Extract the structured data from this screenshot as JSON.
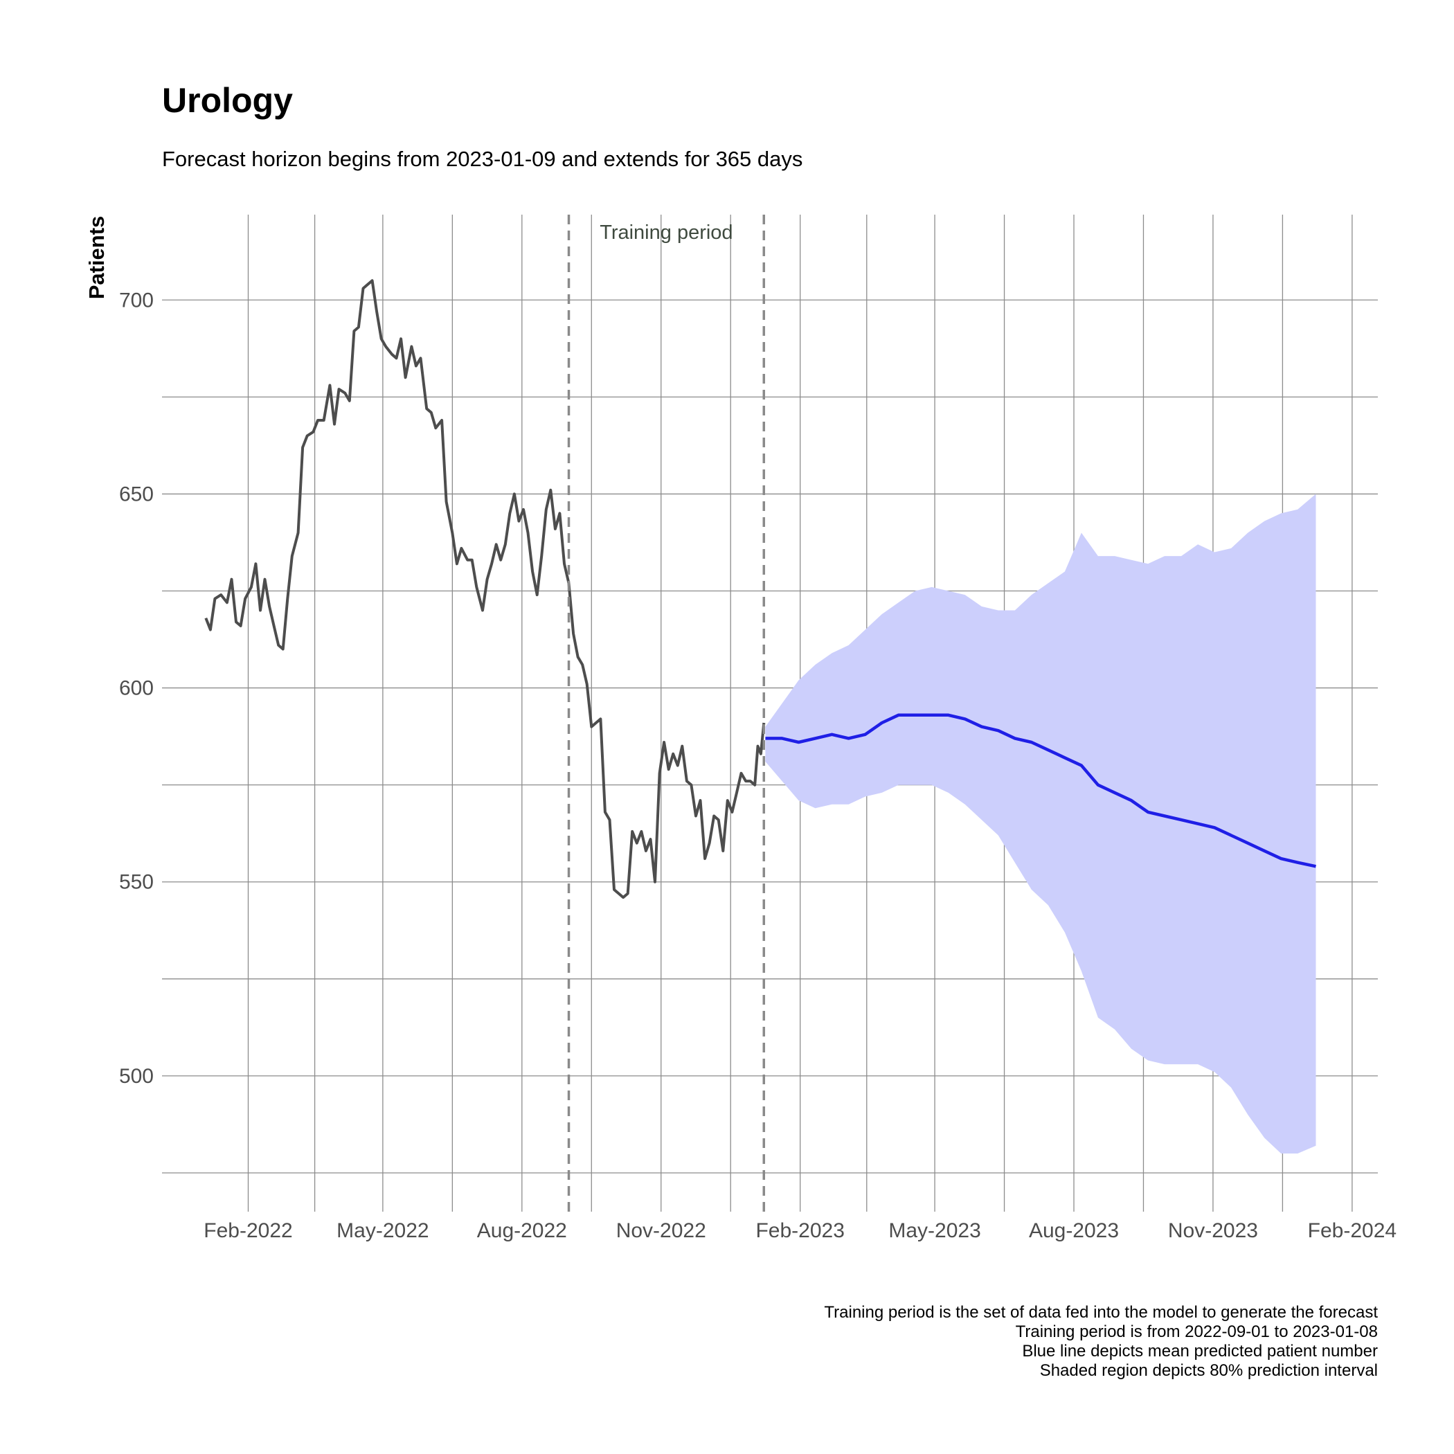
{
  "chart_data": {
    "type": "line",
    "title": "Urology",
    "subtitle": "Forecast horizon begins from 2023-01-09 and extends for 365 days",
    "ylabel": "Patients",
    "xlabel": "",
    "ylim": [
      465,
      722
    ],
    "xlim": [
      "2021-12-06",
      "2024-02-18"
    ],
    "y_ticks": [
      500,
      550,
      600,
      650,
      700
    ],
    "x_ticks": [
      {
        "date": "2022-02-01",
        "label": "Feb-2022"
      },
      {
        "date": "2022-05-01",
        "label": "May-2022"
      },
      {
        "date": "2022-08-01",
        "label": "Aug-2022"
      },
      {
        "date": "2022-11-01",
        "label": "Nov-2022"
      },
      {
        "date": "2023-02-01",
        "label": "Feb-2023"
      },
      {
        "date": "2023-05-01",
        "label": "May-2023"
      },
      {
        "date": "2023-08-01",
        "label": "Aug-2023"
      },
      {
        "date": "2023-11-01",
        "label": "Nov-2023"
      },
      {
        "date": "2024-02-01",
        "label": "Feb-2024"
      }
    ],
    "grid": true,
    "training_period": {
      "label": "Training period",
      "start": "2022-09-01",
      "end": "2023-01-08"
    },
    "series": [
      {
        "role": "history",
        "color": "#4d4d4d",
        "points": [
          [
            "2022-01-04",
            618
          ],
          [
            "2022-01-07",
            615
          ],
          [
            "2022-01-10",
            623
          ],
          [
            "2022-01-14",
            624
          ],
          [
            "2022-01-18",
            622
          ],
          [
            "2022-01-21",
            628
          ],
          [
            "2022-01-24",
            617
          ],
          [
            "2022-01-27",
            616
          ],
          [
            "2022-01-30",
            623
          ],
          [
            "2022-02-03",
            626
          ],
          [
            "2022-02-06",
            632
          ],
          [
            "2022-02-09",
            620
          ],
          [
            "2022-02-12",
            628
          ],
          [
            "2022-02-15",
            621
          ],
          [
            "2022-02-18",
            616
          ],
          [
            "2022-02-21",
            611
          ],
          [
            "2022-02-24",
            610
          ],
          [
            "2022-02-27",
            623
          ],
          [
            "2022-03-02",
            634
          ],
          [
            "2022-03-06",
            640
          ],
          [
            "2022-03-09",
            662
          ],
          [
            "2022-03-12",
            665
          ],
          [
            "2022-03-16",
            666
          ],
          [
            "2022-03-19",
            669
          ],
          [
            "2022-03-23",
            669
          ],
          [
            "2022-03-27",
            678
          ],
          [
            "2022-03-30",
            668
          ],
          [
            "2022-04-02",
            677
          ],
          [
            "2022-04-06",
            676
          ],
          [
            "2022-04-09",
            674
          ],
          [
            "2022-04-12",
            692
          ],
          [
            "2022-04-15",
            693
          ],
          [
            "2022-04-18",
            703
          ],
          [
            "2022-04-21",
            704
          ],
          [
            "2022-04-24",
            705
          ],
          [
            "2022-04-27",
            697
          ],
          [
            "2022-04-30",
            690
          ],
          [
            "2022-05-03",
            688
          ],
          [
            "2022-05-07",
            686
          ],
          [
            "2022-05-10",
            685
          ],
          [
            "2022-05-13",
            690
          ],
          [
            "2022-05-16",
            680
          ],
          [
            "2022-05-20",
            688
          ],
          [
            "2022-05-23",
            683
          ],
          [
            "2022-05-26",
            685
          ],
          [
            "2022-05-30",
            672
          ],
          [
            "2022-06-02",
            671
          ],
          [
            "2022-06-05",
            667
          ],
          [
            "2022-06-09",
            669
          ],
          [
            "2022-06-12",
            648
          ],
          [
            "2022-06-16",
            640
          ],
          [
            "2022-06-19",
            632
          ],
          [
            "2022-06-22",
            636
          ],
          [
            "2022-06-26",
            633
          ],
          [
            "2022-06-29",
            633
          ],
          [
            "2022-07-02",
            626
          ],
          [
            "2022-07-06",
            620
          ],
          [
            "2022-07-09",
            628
          ],
          [
            "2022-07-12",
            632
          ],
          [
            "2022-07-15",
            637
          ],
          [
            "2022-07-18",
            633
          ],
          [
            "2022-07-21",
            637
          ],
          [
            "2022-07-24",
            645
          ],
          [
            "2022-07-27",
            650
          ],
          [
            "2022-07-30",
            643
          ],
          [
            "2022-08-02",
            646
          ],
          [
            "2022-08-05",
            640
          ],
          [
            "2022-08-08",
            630
          ],
          [
            "2022-08-11",
            624
          ],
          [
            "2022-08-14",
            634
          ],
          [
            "2022-08-17",
            646
          ],
          [
            "2022-08-20",
            651
          ],
          [
            "2022-08-23",
            641
          ],
          [
            "2022-08-26",
            645
          ],
          [
            "2022-08-29",
            632
          ],
          [
            "2022-09-01",
            627
          ],
          [
            "2022-09-04",
            614
          ],
          [
            "2022-09-07",
            608
          ],
          [
            "2022-09-10",
            606
          ],
          [
            "2022-09-13",
            601
          ],
          [
            "2022-09-16",
            590
          ],
          [
            "2022-09-19",
            591
          ],
          [
            "2022-09-22",
            592
          ],
          [
            "2022-09-25",
            568
          ],
          [
            "2022-09-28",
            566
          ],
          [
            "2022-10-01",
            548
          ],
          [
            "2022-10-04",
            547
          ],
          [
            "2022-10-07",
            546
          ],
          [
            "2022-10-10",
            547
          ],
          [
            "2022-10-13",
            563
          ],
          [
            "2022-10-16",
            560
          ],
          [
            "2022-10-19",
            563
          ],
          [
            "2022-10-22",
            558
          ],
          [
            "2022-10-25",
            561
          ],
          [
            "2022-10-28",
            550
          ],
          [
            "2022-10-31",
            578
          ],
          [
            "2022-11-03",
            586
          ],
          [
            "2022-11-06",
            579
          ],
          [
            "2022-11-09",
            583
          ],
          [
            "2022-11-12",
            580
          ],
          [
            "2022-11-15",
            585
          ],
          [
            "2022-11-18",
            576
          ],
          [
            "2022-11-21",
            575
          ],
          [
            "2022-11-24",
            567
          ],
          [
            "2022-11-27",
            571
          ],
          [
            "2022-11-30",
            556
          ],
          [
            "2022-12-03",
            560
          ],
          [
            "2022-12-06",
            567
          ],
          [
            "2022-12-09",
            566
          ],
          [
            "2022-12-12",
            558
          ],
          [
            "2022-12-15",
            571
          ],
          [
            "2022-12-18",
            568
          ],
          [
            "2022-12-21",
            573
          ],
          [
            "2022-12-24",
            578
          ],
          [
            "2022-12-27",
            576
          ],
          [
            "2022-12-30",
            576
          ],
          [
            "2023-01-02",
            575
          ],
          [
            "2023-01-04",
            585
          ],
          [
            "2023-01-06",
            583
          ],
          [
            "2023-01-08",
            591
          ]
        ]
      },
      {
        "role": "forecast mean",
        "color": "#1f1fe6",
        "points": [
          [
            "2023-01-09",
            587
          ],
          [
            "2023-01-20",
            587
          ],
          [
            "2023-01-31",
            586
          ],
          [
            "2023-02-11",
            587
          ],
          [
            "2023-02-22",
            588
          ],
          [
            "2023-03-05",
            587
          ],
          [
            "2023-03-16",
            588
          ],
          [
            "2023-03-27",
            591
          ],
          [
            "2023-04-07",
            593
          ],
          [
            "2023-04-18",
            593
          ],
          [
            "2023-04-29",
            593
          ],
          [
            "2023-05-10",
            593
          ],
          [
            "2023-05-21",
            592
          ],
          [
            "2023-06-01",
            590
          ],
          [
            "2023-06-12",
            589
          ],
          [
            "2023-06-23",
            587
          ],
          [
            "2023-07-04",
            586
          ],
          [
            "2023-07-15",
            584
          ],
          [
            "2023-07-26",
            582
          ],
          [
            "2023-08-06",
            580
          ],
          [
            "2023-08-17",
            575
          ],
          [
            "2023-08-28",
            573
          ],
          [
            "2023-09-08",
            571
          ],
          [
            "2023-09-19",
            568
          ],
          [
            "2023-09-30",
            567
          ],
          [
            "2023-10-11",
            566
          ],
          [
            "2023-10-22",
            565
          ],
          [
            "2023-11-02",
            564
          ],
          [
            "2023-11-13",
            562
          ],
          [
            "2023-11-24",
            560
          ],
          [
            "2023-12-05",
            558
          ],
          [
            "2023-12-16",
            556
          ],
          [
            "2023-12-27",
            555
          ],
          [
            "2024-01-08",
            554
          ]
        ]
      },
      {
        "role": "80% prediction interval",
        "color": "#cccffc",
        "upper": [
          [
            "2023-01-09",
            590
          ],
          [
            "2023-01-20",
            596
          ],
          [
            "2023-01-31",
            602
          ],
          [
            "2023-02-11",
            606
          ],
          [
            "2023-02-22",
            609
          ],
          [
            "2023-03-05",
            611
          ],
          [
            "2023-03-16",
            615
          ],
          [
            "2023-03-27",
            619
          ],
          [
            "2023-04-07",
            622
          ],
          [
            "2023-04-18",
            625
          ],
          [
            "2023-04-29",
            626
          ],
          [
            "2023-05-10",
            625
          ],
          [
            "2023-05-21",
            624
          ],
          [
            "2023-06-01",
            621
          ],
          [
            "2023-06-12",
            620
          ],
          [
            "2023-06-23",
            620
          ],
          [
            "2023-07-04",
            624
          ],
          [
            "2023-07-15",
            627
          ],
          [
            "2023-07-26",
            630
          ],
          [
            "2023-08-06",
            640
          ],
          [
            "2023-08-17",
            634
          ],
          [
            "2023-08-28",
            634
          ],
          [
            "2023-09-08",
            633
          ],
          [
            "2023-09-19",
            632
          ],
          [
            "2023-09-30",
            634
          ],
          [
            "2023-10-11",
            634
          ],
          [
            "2023-10-22",
            637
          ],
          [
            "2023-11-02",
            635
          ],
          [
            "2023-11-13",
            636
          ],
          [
            "2023-11-24",
            640
          ],
          [
            "2023-12-05",
            643
          ],
          [
            "2023-12-16",
            645
          ],
          [
            "2023-12-27",
            646
          ],
          [
            "2024-01-08",
            650
          ]
        ],
        "lower": [
          [
            "2023-01-09",
            581
          ],
          [
            "2023-01-20",
            576
          ],
          [
            "2023-01-31",
            571
          ],
          [
            "2023-02-11",
            569
          ],
          [
            "2023-02-22",
            570
          ],
          [
            "2023-03-05",
            570
          ],
          [
            "2023-03-16",
            572
          ],
          [
            "2023-03-27",
            573
          ],
          [
            "2023-04-07",
            575
          ],
          [
            "2023-04-18",
            575
          ],
          [
            "2023-04-29",
            575
          ],
          [
            "2023-05-10",
            573
          ],
          [
            "2023-05-21",
            570
          ],
          [
            "2023-06-01",
            566
          ],
          [
            "2023-06-12",
            562
          ],
          [
            "2023-06-23",
            555
          ],
          [
            "2023-07-04",
            548
          ],
          [
            "2023-07-15",
            544
          ],
          [
            "2023-07-26",
            537
          ],
          [
            "2023-08-06",
            527
          ],
          [
            "2023-08-17",
            515
          ],
          [
            "2023-08-28",
            512
          ],
          [
            "2023-09-08",
            507
          ],
          [
            "2023-09-19",
            504
          ],
          [
            "2023-09-30",
            503
          ],
          [
            "2023-10-11",
            503
          ],
          [
            "2023-10-22",
            503
          ],
          [
            "2023-11-02",
            501
          ],
          [
            "2023-11-13",
            497
          ],
          [
            "2023-11-24",
            490
          ],
          [
            "2023-12-05",
            484
          ],
          [
            "2023-12-16",
            480
          ],
          [
            "2023-12-27",
            480
          ],
          [
            "2024-01-08",
            482
          ]
        ]
      }
    ]
  },
  "caption": [
    "Training period is the set of data fed into the model to generate the forecast",
    "Training period is from 2022-09-01 to 2023-01-08",
    "Blue line depicts mean predicted patient number",
    "Shaded region depicts 80% prediction interval"
  ]
}
